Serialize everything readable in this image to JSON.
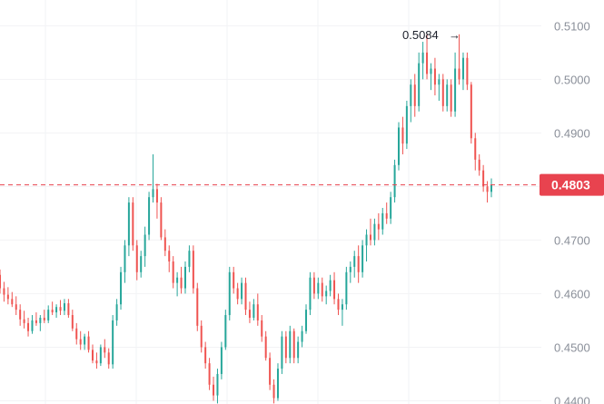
{
  "chart_data": {
    "type": "candlestick",
    "title": "",
    "xlabel": "",
    "ylabel": "",
    "ylim": [
      0.4394,
      0.5148
    ],
    "y_ticks": [
      "0.5100",
      "0.5000",
      "0.4900",
      "0.4800",
      "0.4700",
      "0.4600",
      "0.4500",
      "0.4400"
    ],
    "grid": true,
    "current_price": {
      "value": 0.4803,
      "label": "0.4803"
    },
    "high_annotation": {
      "value": 0.5084,
      "label": "0.5084",
      "arrow": "→"
    },
    "colors": {
      "up": "#26a69a",
      "down": "#ef5350",
      "price_line": "#e8434f",
      "grid": "#f2f3f5",
      "axis_text": "#8a8f99"
    },
    "candles": [
      [
        0.4635,
        0.4645,
        0.46,
        0.461
      ],
      [
        0.461,
        0.4622,
        0.4585,
        0.4598
      ],
      [
        0.4598,
        0.4612,
        0.458,
        0.459
      ],
      [
        0.459,
        0.4603,
        0.4575,
        0.458
      ],
      [
        0.458,
        0.4595,
        0.456,
        0.457
      ],
      [
        0.457,
        0.458,
        0.454,
        0.4552
      ],
      [
        0.4552,
        0.4568,
        0.4535,
        0.4545
      ],
      [
        0.4545,
        0.4555,
        0.452,
        0.453
      ],
      [
        0.453,
        0.456,
        0.4525,
        0.455
      ],
      [
        0.455,
        0.4565,
        0.454,
        0.4545
      ],
      [
        0.4545,
        0.456,
        0.453,
        0.4555
      ],
      [
        0.4555,
        0.457,
        0.4545,
        0.455
      ],
      [
        0.455,
        0.4578,
        0.4545,
        0.457
      ],
      [
        0.457,
        0.4585,
        0.456,
        0.4565
      ],
      [
        0.4565,
        0.458,
        0.4555,
        0.4575
      ],
      [
        0.4575,
        0.4588,
        0.456,
        0.4568
      ],
      [
        0.4568,
        0.459,
        0.456,
        0.4582
      ],
      [
        0.4582,
        0.459,
        0.4555,
        0.456
      ],
      [
        0.456,
        0.457,
        0.453,
        0.4535
      ],
      [
        0.4535,
        0.4545,
        0.4505,
        0.4515
      ],
      [
        0.4515,
        0.453,
        0.4495,
        0.4505
      ],
      [
        0.4505,
        0.4525,
        0.4495,
        0.452
      ],
      [
        0.452,
        0.453,
        0.449,
        0.4495
      ],
      [
        0.4495,
        0.4505,
        0.447,
        0.4475
      ],
      [
        0.4475,
        0.449,
        0.446,
        0.447
      ],
      [
        0.447,
        0.4505,
        0.4465,
        0.45
      ],
      [
        0.45,
        0.4515,
        0.448,
        0.449
      ],
      [
        0.449,
        0.4498,
        0.446,
        0.4468
      ],
      [
        0.4468,
        0.456,
        0.446,
        0.455
      ],
      [
        0.455,
        0.459,
        0.454,
        0.458
      ],
      [
        0.458,
        0.465,
        0.457,
        0.464
      ],
      [
        0.464,
        0.47,
        0.462,
        0.469
      ],
      [
        0.469,
        0.478,
        0.467,
        0.477
      ],
      [
        0.477,
        0.478,
        0.468,
        0.469
      ],
      [
        0.469,
        0.47,
        0.4625,
        0.464
      ],
      [
        0.464,
        0.468,
        0.463,
        0.467
      ],
      [
        0.467,
        0.4725,
        0.465,
        0.471
      ],
      [
        0.471,
        0.479,
        0.47,
        0.478
      ],
      [
        0.478,
        0.486,
        0.477,
        0.4795
      ],
      [
        0.4795,
        0.4805,
        0.474,
        0.477
      ],
      [
        0.477,
        0.478,
        0.47,
        0.4705
      ],
      [
        0.4705,
        0.472,
        0.467,
        0.468
      ],
      [
        0.468,
        0.469,
        0.464,
        0.466
      ],
      [
        0.466,
        0.467,
        0.461,
        0.462
      ],
      [
        0.462,
        0.464,
        0.4595,
        0.463
      ],
      [
        0.463,
        0.465,
        0.46,
        0.461
      ],
      [
        0.461,
        0.466,
        0.46,
        0.465
      ],
      [
        0.465,
        0.469,
        0.464,
        0.468
      ],
      [
        0.468,
        0.469,
        0.46,
        0.461
      ],
      [
        0.461,
        0.462,
        0.453,
        0.454
      ],
      [
        0.454,
        0.455,
        0.449,
        0.45
      ],
      [
        0.45,
        0.451,
        0.446,
        0.447
      ],
      [
        0.447,
        0.448,
        0.442,
        0.443
      ],
      [
        0.443,
        0.4445,
        0.44,
        0.441
      ],
      [
        0.441,
        0.446,
        0.4395,
        0.445
      ],
      [
        0.445,
        0.451,
        0.444,
        0.45
      ],
      [
        0.45,
        0.457,
        0.4495,
        0.456
      ],
      [
        0.456,
        0.465,
        0.455,
        0.464
      ],
      [
        0.464,
        0.465,
        0.46,
        0.461
      ],
      [
        0.461,
        0.462,
        0.458,
        0.459
      ],
      [
        0.459,
        0.463,
        0.458,
        0.462
      ],
      [
        0.462,
        0.463,
        0.456,
        0.457
      ],
      [
        0.457,
        0.4585,
        0.4545,
        0.4555
      ],
      [
        0.4555,
        0.459,
        0.455,
        0.458
      ],
      [
        0.458,
        0.46,
        0.454,
        0.455
      ],
      [
        0.455,
        0.456,
        0.451,
        0.452
      ],
      [
        0.452,
        0.453,
        0.4475,
        0.448
      ],
      [
        0.448,
        0.449,
        0.442,
        0.443
      ],
      [
        0.443,
        0.444,
        0.4395,
        0.4405
      ],
      [
        0.4405,
        0.447,
        0.44,
        0.446
      ],
      [
        0.446,
        0.453,
        0.445,
        0.452
      ],
      [
        0.452,
        0.453,
        0.447,
        0.448
      ],
      [
        0.448,
        0.454,
        0.447,
        0.453
      ],
      [
        0.453,
        0.4535,
        0.447,
        0.448
      ],
      [
        0.448,
        0.452,
        0.447,
        0.451
      ],
      [
        0.451,
        0.454,
        0.45,
        0.453
      ],
      [
        0.453,
        0.458,
        0.4525,
        0.457
      ],
      [
        0.457,
        0.464,
        0.456,
        0.463
      ],
      [
        0.463,
        0.464,
        0.459,
        0.46
      ],
      [
        0.46,
        0.463,
        0.459,
        0.462
      ],
      [
        0.462,
        0.463,
        0.4585,
        0.4595
      ],
      [
        0.4595,
        0.4615,
        0.458,
        0.4605
      ],
      [
        0.4605,
        0.4635,
        0.4595,
        0.4625
      ],
      [
        0.4625,
        0.464,
        0.458,
        0.459
      ],
      [
        0.459,
        0.46,
        0.456,
        0.457
      ],
      [
        0.457,
        0.459,
        0.454,
        0.458
      ],
      [
        0.458,
        0.465,
        0.457,
        0.464
      ],
      [
        0.464,
        0.466,
        0.462,
        0.465
      ],
      [
        0.465,
        0.468,
        0.463,
        0.467
      ],
      [
        0.467,
        0.469,
        0.462,
        0.464
      ],
      [
        0.464,
        0.47,
        0.463,
        0.469
      ],
      [
        0.469,
        0.472,
        0.466,
        0.471
      ],
      [
        0.471,
        0.474,
        0.469,
        0.47
      ],
      [
        0.47,
        0.474,
        0.469,
        0.473
      ],
      [
        0.473,
        0.475,
        0.47,
        0.472
      ],
      [
        0.472,
        0.476,
        0.471,
        0.475
      ],
      [
        0.475,
        0.477,
        0.473,
        0.474
      ],
      [
        0.474,
        0.479,
        0.473,
        0.478
      ],
      [
        0.478,
        0.485,
        0.477,
        0.484
      ],
      [
        0.484,
        0.492,
        0.483,
        0.491
      ],
      [
        0.491,
        0.493,
        0.486,
        0.488
      ],
      [
        0.488,
        0.496,
        0.487,
        0.495
      ],
      [
        0.495,
        0.5,
        0.492,
        0.499
      ],
      [
        0.499,
        0.501,
        0.493,
        0.495
      ],
      [
        0.495,
        0.505,
        0.494,
        0.503
      ],
      [
        0.503,
        0.507,
        0.5,
        0.505
      ],
      [
        0.505,
        0.5084,
        0.5,
        0.501
      ],
      [
        0.501,
        0.503,
        0.498,
        0.502
      ],
      [
        0.502,
        0.504,
        0.497,
        0.499
      ],
      [
        0.499,
        0.501,
        0.496,
        0.5
      ],
      [
        0.5,
        0.501,
        0.494,
        0.495
      ],
      [
        0.495,
        0.5,
        0.494,
        0.499
      ],
      [
        0.499,
        0.5,
        0.493,
        0.494
      ],
      [
        0.494,
        0.505,
        0.493,
        0.502
      ],
      [
        0.502,
        0.5084,
        0.499,
        0.5
      ],
      [
        0.5,
        0.505,
        0.498,
        0.504
      ],
      [
        0.504,
        0.505,
        0.498,
        0.499
      ],
      [
        0.499,
        0.4995,
        0.488,
        0.489
      ],
      [
        0.489,
        0.49,
        0.483,
        0.485
      ],
      [
        0.485,
        0.486,
        0.482,
        0.483
      ],
      [
        0.483,
        0.484,
        0.479,
        0.48
      ],
      [
        0.48,
        0.481,
        0.477,
        0.479
      ],
      [
        0.479,
        0.4815,
        0.478,
        0.4803
      ]
    ]
  }
}
